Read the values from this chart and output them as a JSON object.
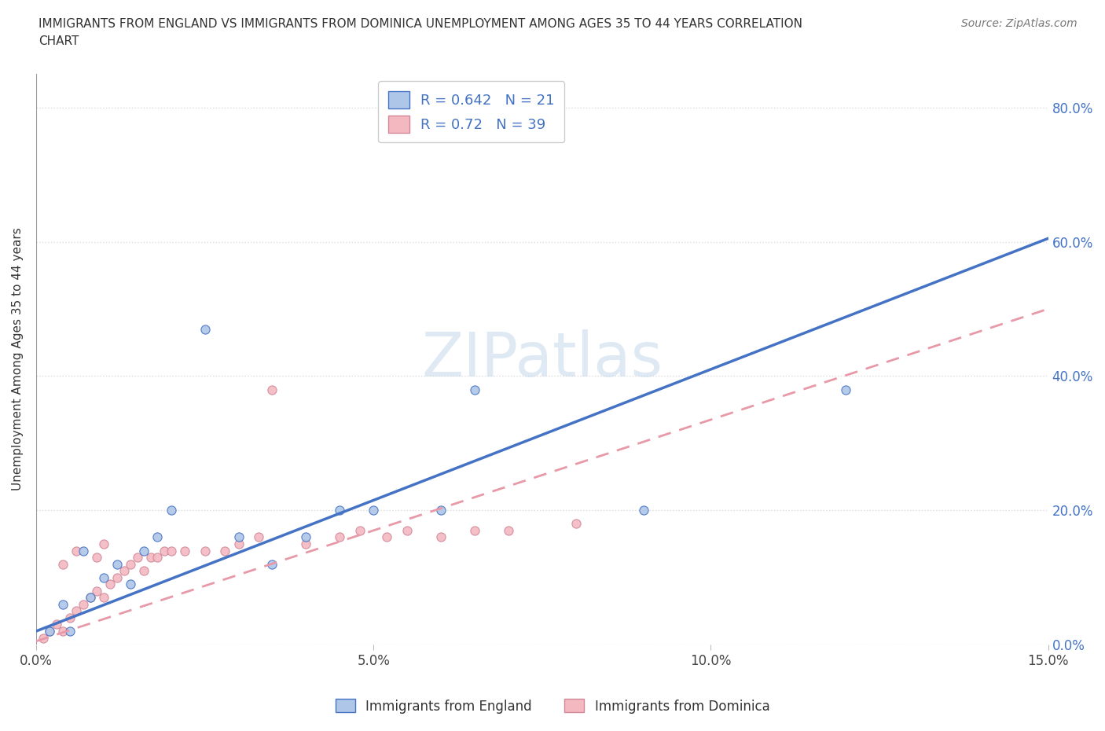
{
  "title_line1": "IMMIGRANTS FROM ENGLAND VS IMMIGRANTS FROM DOMINICA UNEMPLOYMENT AMONG AGES 35 TO 44 YEARS CORRELATION",
  "title_line2": "CHART",
  "source_text": "Source: ZipAtlas.com",
  "ylabel": "Unemployment Among Ages 35 to 44 years",
  "xlim": [
    0.0,
    0.15
  ],
  "ylim": [
    0.0,
    0.85
  ],
  "x_ticks": [
    0.0,
    0.05,
    0.1,
    0.15
  ],
  "x_tick_labels": [
    "0.0%",
    "5.0%",
    "10.0%",
    "15.0%"
  ],
  "y_ticks": [
    0.0,
    0.2,
    0.4,
    0.6,
    0.8
  ],
  "y_tick_labels": [
    "0.0%",
    "20.0%",
    "40.0%",
    "60.0%",
    "80.0%"
  ],
  "england_face_color": "#aec6e8",
  "england_edge_color": "#4472c4",
  "dominica_face_color": "#f4b8c1",
  "dominica_edge_color": "#d08898",
  "england_line_color": "#4472c4",
  "dominica_line_color": "#e899a8",
  "R_england": 0.642,
  "N_england": 21,
  "R_dominica": 0.72,
  "N_dominica": 39,
  "watermark": "ZIPatlas",
  "watermark_color": "#c5d8ea",
  "england_x": [
    0.002,
    0.004,
    0.005,
    0.007,
    0.008,
    0.01,
    0.012,
    0.014,
    0.016,
    0.018,
    0.02,
    0.025,
    0.03,
    0.035,
    0.04,
    0.045,
    0.05,
    0.06,
    0.065,
    0.09,
    0.12
  ],
  "england_y": [
    0.02,
    0.06,
    0.02,
    0.14,
    0.07,
    0.1,
    0.12,
    0.09,
    0.14,
    0.16,
    0.2,
    0.47,
    0.16,
    0.12,
    0.16,
    0.2,
    0.2,
    0.2,
    0.38,
    0.2,
    0.38
  ],
  "dominica_x": [
    0.001,
    0.002,
    0.003,
    0.004,
    0.004,
    0.005,
    0.006,
    0.006,
    0.007,
    0.008,
    0.009,
    0.009,
    0.01,
    0.01,
    0.011,
    0.012,
    0.013,
    0.014,
    0.015,
    0.016,
    0.017,
    0.018,
    0.019,
    0.02,
    0.022,
    0.025,
    0.028,
    0.03,
    0.033,
    0.035,
    0.04,
    0.045,
    0.048,
    0.052,
    0.055,
    0.06,
    0.065,
    0.07,
    0.08
  ],
  "dominica_y": [
    0.01,
    0.02,
    0.03,
    0.02,
    0.12,
    0.04,
    0.05,
    0.14,
    0.06,
    0.07,
    0.08,
    0.13,
    0.07,
    0.15,
    0.09,
    0.1,
    0.11,
    0.12,
    0.13,
    0.11,
    0.13,
    0.13,
    0.14,
    0.14,
    0.14,
    0.14,
    0.14,
    0.15,
    0.16,
    0.38,
    0.15,
    0.16,
    0.17,
    0.16,
    0.17,
    0.16,
    0.17,
    0.17,
    0.18
  ],
  "england_line_slope": 3.9,
  "england_line_intercept": 0.02,
  "dominica_line_slope": 3.3,
  "dominica_line_intercept": 0.005,
  "background_color": "#ffffff",
  "grid_color": "#dddddd",
  "tick_color": "#4472c4"
}
